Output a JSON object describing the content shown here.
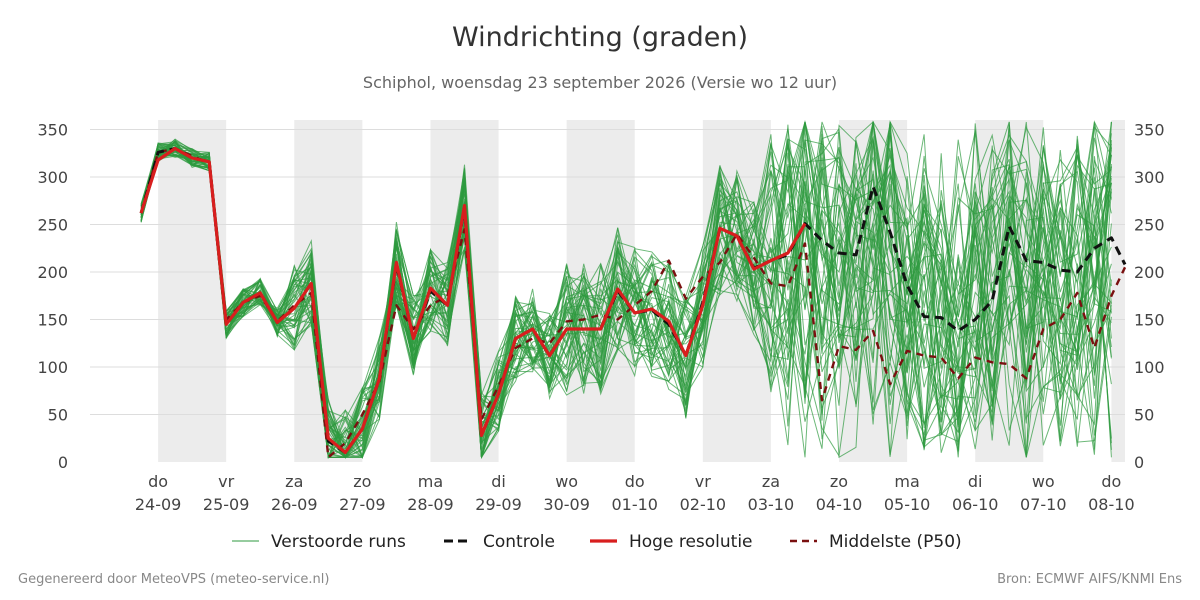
{
  "chart_data": {
    "type": "line",
    "title": "Windrichting (graden)",
    "subtitle": "Schiphol, woensdag 23 september 2026 (Versie wo 12 uur)",
    "ylim": [
      0,
      360
    ],
    "yticks": [
      0,
      50,
      100,
      150,
      200,
      250,
      300,
      350
    ],
    "xlim": [
      -1.0,
      14.2
    ],
    "x_ticks": [
      {
        "day": "do",
        "date": "24-09"
      },
      {
        "day": "vr",
        "date": "25-09"
      },
      {
        "day": "za",
        "date": "26-09"
      },
      {
        "day": "zo",
        "date": "27-09"
      },
      {
        "day": "ma",
        "date": "28-09"
      },
      {
        "day": "di",
        "date": "29-09"
      },
      {
        "day": "wo",
        "date": "30-09"
      },
      {
        "day": "do",
        "date": "01-10"
      },
      {
        "day": "vr",
        "date": "02-10"
      },
      {
        "day": "za",
        "date": "03-10"
      },
      {
        "day": "zo",
        "date": "04-10"
      },
      {
        "day": "ma",
        "date": "05-10"
      },
      {
        "day": "di",
        "date": "06-10"
      },
      {
        "day": "wo",
        "date": "07-10"
      },
      {
        "day": "do",
        "date": "08-10"
      }
    ],
    "night_bands": [
      [
        0,
        1
      ],
      [
        2,
        3
      ],
      [
        4,
        5
      ],
      [
        6,
        7
      ],
      [
        8,
        9
      ],
      [
        10,
        11
      ],
      [
        12,
        13
      ],
      [
        14,
        15
      ]
    ],
    "grid": true,
    "legend_position": "bottom",
    "legend": [
      "Verstoorde runs",
      "Controle",
      "Hoge resolutie",
      "Middelste (P50)"
    ],
    "colors": {
      "ensemble": "#2e9a3f",
      "control": "#111111",
      "hres": "#d81e1e",
      "median": "#7a1010",
      "night_band": "#ececec",
      "grid": "#dddddd"
    },
    "series": [
      {
        "name": "Controle",
        "x": [
          -0.25,
          0.0,
          0.25,
          0.5,
          0.75,
          1.0,
          1.25,
          1.5,
          1.75,
          2.0,
          2.25,
          2.5,
          2.75,
          3.0,
          3.25,
          3.5,
          3.75,
          4.0,
          4.25,
          4.5,
          4.75,
          5.0,
          5.25,
          5.5,
          5.75,
          6.0,
          6.25,
          6.5,
          6.75,
          7.0,
          7.25,
          7.5,
          7.75,
          8.0,
          8.25,
          8.5,
          8.75,
          9.0,
          9.25,
          9.5,
          9.75,
          10.0,
          10.25,
          10.5,
          10.75,
          11.0,
          11.25,
          11.5,
          11.75,
          12.0,
          12.25,
          12.5,
          12.75,
          13.0,
          13.25,
          13.5,
          13.75,
          14.0,
          14.2
        ],
        "values": [
          262,
          326,
          330,
          320,
          316,
          145,
          168,
          178,
          147,
          162,
          188,
          22,
          10,
          35,
          88,
          208,
          130,
          180,
          165,
          268,
          28,
          72,
          130,
          140,
          112,
          140,
          140,
          140,
          180,
          157,
          160,
          145,
          112,
          168,
          246,
          238,
          204,
          212,
          218,
          251,
          233,
          220,
          218,
          290,
          242,
          186,
          153,
          152,
          138,
          150,
          170,
          248,
          212,
          210,
          202,
          200,
          225,
          236,
          208
        ]
      },
      {
        "name": "Hoge resolutie",
        "x": [
          -0.25,
          0.0,
          0.25,
          0.5,
          0.75,
          1.0,
          1.25,
          1.5,
          1.75,
          2.0,
          2.25,
          2.5,
          2.75,
          3.0,
          3.25,
          3.5,
          3.75,
          4.0,
          4.25,
          4.5,
          4.75,
          5.0,
          5.25,
          5.5,
          5.75,
          6.0,
          6.25,
          6.5,
          6.75,
          7.0,
          7.25,
          7.5,
          7.75,
          8.0,
          8.25,
          8.5,
          8.75,
          9.0,
          9.25,
          9.5
        ],
        "values": [
          262,
          318,
          330,
          320,
          316,
          145,
          168,
          178,
          147,
          162,
          188,
          25,
          10,
          35,
          88,
          210,
          130,
          183,
          165,
          270,
          28,
          72,
          130,
          140,
          112,
          140,
          140,
          140,
          182,
          157,
          161,
          148,
          112,
          165,
          246,
          238,
          203,
          212,
          220,
          251
        ]
      },
      {
        "name": "Middelste (P50)",
        "x": [
          -0.25,
          0.0,
          0.25,
          0.5,
          0.75,
          1.0,
          1.25,
          1.5,
          1.75,
          2.0,
          2.25,
          2.5,
          2.75,
          3.0,
          3.25,
          3.5,
          3.75,
          4.0,
          4.25,
          4.5,
          4.75,
          5.0,
          5.25,
          5.5,
          5.75,
          6.0,
          6.25,
          6.5,
          6.75,
          7.0,
          7.25,
          7.5,
          7.75,
          8.0,
          8.25,
          8.5,
          8.75,
          9.0,
          9.25,
          9.5,
          9.75,
          10.0,
          10.25,
          10.5,
          10.75,
          11.0,
          11.25,
          11.5,
          11.75,
          12.0,
          12.25,
          12.5,
          12.75,
          13.0,
          13.25,
          13.5,
          13.75,
          14.0,
          14.2
        ],
        "values": [
          262,
          326,
          330,
          322,
          315,
          150,
          168,
          175,
          148,
          165,
          178,
          5,
          20,
          50,
          85,
          165,
          140,
          165,
          175,
          245,
          45,
          80,
          120,
          130,
          125,
          148,
          150,
          155,
          150,
          165,
          180,
          212,
          172,
          195,
          210,
          240,
          215,
          188,
          185,
          230,
          65,
          122,
          118,
          138,
          82,
          117,
          112,
          110,
          88,
          110,
          105,
          103,
          88,
          140,
          150,
          178,
          120,
          175,
          205
        ]
      }
    ]
  },
  "footer": {
    "left": "Gegenereerd door MeteoVPS (meteo-service.nl)",
    "right": "Bron: ECMWF AIFS/KNMI Ens"
  }
}
